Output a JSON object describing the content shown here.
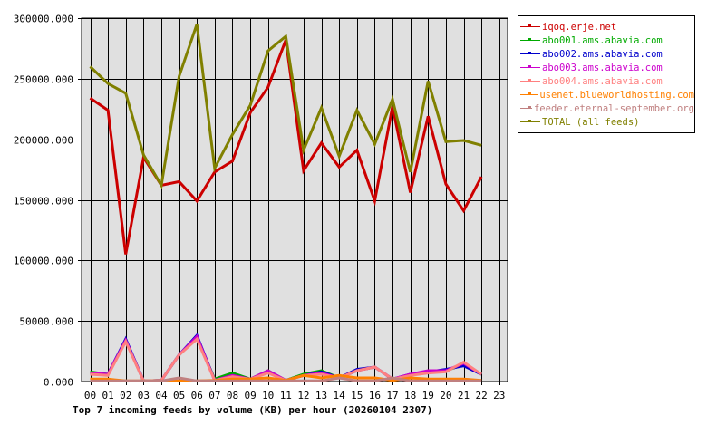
{
  "chart_data": {
    "type": "line",
    "title": "Top 7 incoming feeds by volume (KB) per hour (20260104 2307)",
    "xlabel": "",
    "ylabel": "",
    "ylim": [
      0,
      300000
    ],
    "y_ticks": [
      "0.000",
      "50000.000",
      "100000.000",
      "150000.000",
      "200000.000",
      "250000.000",
      "300000.000"
    ],
    "y_tick_values": [
      0,
      50000,
      100000,
      150000,
      200000,
      250000,
      300000
    ],
    "categories": [
      "00",
      "01",
      "02",
      "03",
      "04",
      "05",
      "06",
      "07",
      "08",
      "09",
      "10",
      "11",
      "12",
      "13",
      "14",
      "15",
      "16",
      "17",
      "18",
      "19",
      "20",
      "21",
      "22",
      "23"
    ],
    "grid": true,
    "legend_position": "right",
    "series": [
      {
        "name": "iqoq.erje.net",
        "color": "#cc0000",
        "values": [
          234000,
          224000,
          105000,
          185000,
          162000,
          165000,
          149000,
          173000,
          182000,
          222000,
          243000,
          282000,
          174000,
          197000,
          177000,
          191000,
          149000,
          227000,
          156000,
          219000,
          163000,
          141000,
          169000
        ]
      },
      {
        "name": "abo001.ams.abavia.com",
        "color": "#00aa00",
        "values": [
          8000,
          6000,
          34000,
          500,
          1000,
          22000,
          36000,
          2000,
          7000,
          2000,
          9000,
          1000,
          6000,
          9000,
          3000,
          9000,
          12000,
          2000,
          5000,
          8000,
          9000,
          14000,
          6000
        ]
      },
      {
        "name": "abo002.ams.abavia.com",
        "color": "#0000cc",
        "values": [
          7000,
          6000,
          35000,
          500,
          1000,
          22000,
          38000,
          1000,
          5000,
          2000,
          8000,
          1000,
          5000,
          8000,
          3000,
          10000,
          12000,
          2000,
          6000,
          8000,
          10000,
          13000,
          6000
        ]
      },
      {
        "name": "abo003.ams.abavia.com",
        "color": "#cc00cc",
        "values": [
          7000,
          6000,
          34000,
          500,
          1000,
          22000,
          37000,
          1000,
          5000,
          2000,
          9000,
          1000,
          5000,
          7000,
          3000,
          9000,
          12000,
          2000,
          6000,
          9000,
          9000,
          15000,
          6000
        ]
      },
      {
        "name": "abo004.ams.abavia.com",
        "color": "#ff8080",
        "values": [
          6000,
          5000,
          33000,
          500,
          1000,
          22000,
          35000,
          1000,
          4000,
          2000,
          7000,
          1000,
          5000,
          6000,
          3000,
          9000,
          12000,
          2000,
          5000,
          7000,
          8000,
          16000,
          6000
        ]
      },
      {
        "name": "usenet.blueworldhosting.com",
        "color": "#ff8000",
        "values": [
          2000,
          2000,
          500,
          500,
          500,
          500,
          500,
          1000,
          2000,
          2000,
          3000,
          1000,
          5000,
          3000,
          5000,
          3000,
          3000,
          1000,
          3000,
          2000,
          2000,
          2000,
          1000
        ]
      },
      {
        "name": "feeder.eternal-september.org",
        "color": "#c08080",
        "values": [
          500,
          500,
          500,
          500,
          500,
          3000,
          500,
          500,
          500,
          500,
          500,
          500,
          500,
          500,
          3000,
          500,
          500,
          3000,
          500,
          500,
          500,
          500,
          500
        ]
      },
      {
        "name": "TOTAL (all feeds)",
        "color": "#808000",
        "values": [
          260000,
          246000,
          238000,
          187000,
          162000,
          252000,
          295000,
          176000,
          204000,
          228000,
          273000,
          285000,
          191000,
          226000,
          186000,
          224000,
          196000,
          233000,
          173000,
          248000,
          198000,
          199000,
          195000
        ]
      }
    ]
  },
  "legend": {
    "items": [
      {
        "label": "iqoq.erje.net",
        "color": "#cc0000"
      },
      {
        "label": "abo001.ams.abavia.com",
        "color": "#00aa00"
      },
      {
        "label": "abo002.ams.abavia.com",
        "color": "#0000cc"
      },
      {
        "label": "abo003.ams.abavia.com",
        "color": "#cc00cc"
      },
      {
        "label": "abo004.ams.abavia.com",
        "color": "#ff8080"
      },
      {
        "label": "usenet.blueworldhosting.com",
        "color": "#ff8000"
      },
      {
        "label": "feeder.eternal-september.org",
        "color": "#c08080"
      },
      {
        "label": "TOTAL (all feeds)",
        "color": "#808000"
      }
    ]
  }
}
